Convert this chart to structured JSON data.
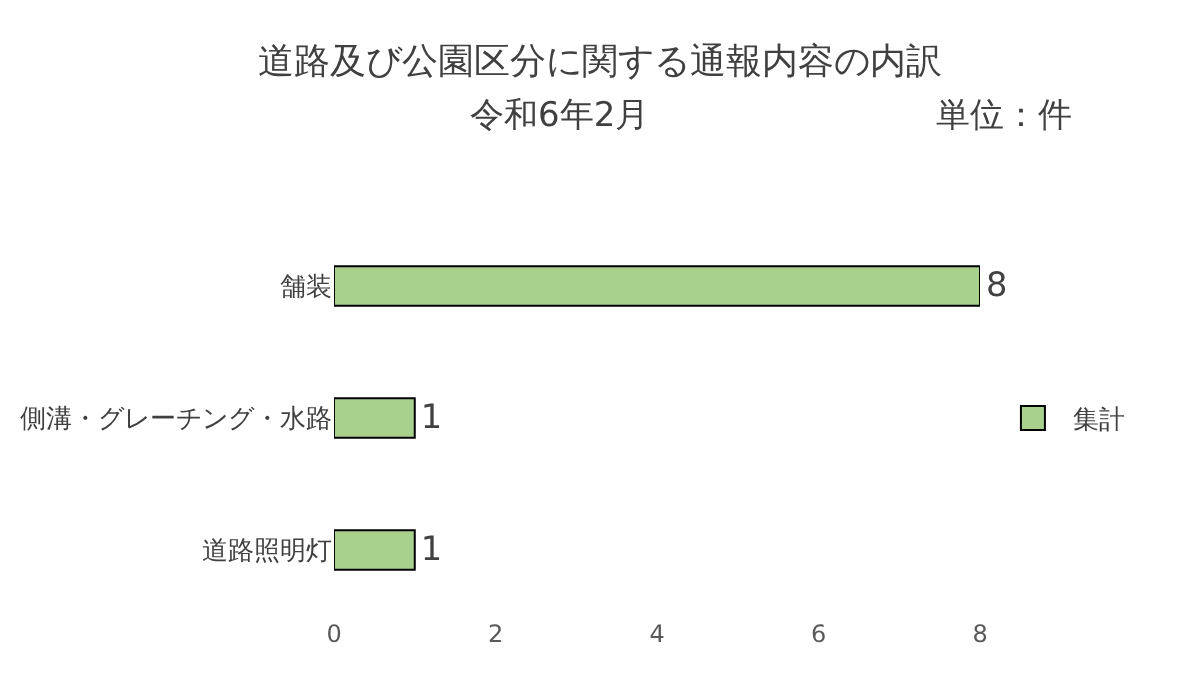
{
  "chart_data": {
    "type": "bar",
    "orientation": "horizontal",
    "title": "道路及び公園区分に関する通報内容の内訳",
    "subtitle": "令和6年2月",
    "annotations": [
      "単位：件"
    ],
    "categories": [
      "舗装",
      "側溝・グレーチング・水路",
      "道路照明灯"
    ],
    "series": [
      {
        "name": "集計",
        "color": "#a9d18e",
        "values": [
          8,
          1,
          1
        ]
      }
    ],
    "xlim": [
      0,
      8
    ],
    "xticks": [
      0,
      2,
      4,
      6,
      8
    ],
    "legend": "right",
    "data_labels": true
  }
}
